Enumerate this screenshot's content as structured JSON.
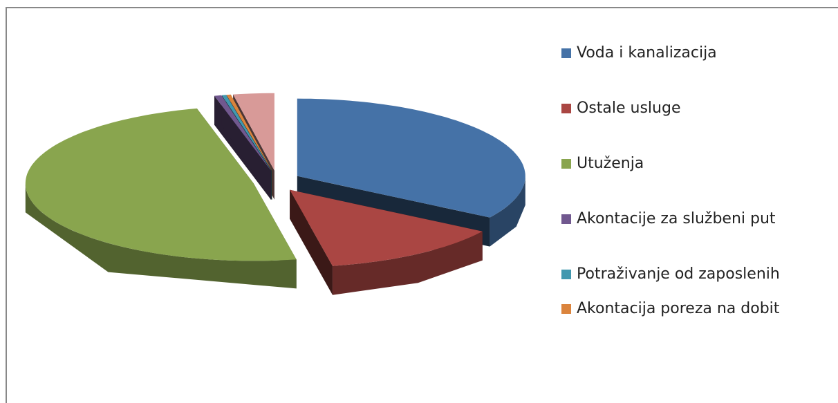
{
  "chart_data": {
    "type": "pie3d",
    "categories": [
      "Voda i kanalizacija",
      "Ostale usluge",
      "Utuženja",
      "Akontacije za službeni put",
      "Potraživanje od zaposlenih",
      "Akontacija poreza na dobit",
      null
    ],
    "values": [
      34,
      13,
      49,
      0.5,
      0.3,
      0.3,
      2.9
    ],
    "colors": [
      "#4572a7",
      "#aa4643",
      "#89a54e",
      "#71588f",
      "#4198af",
      "#db843d",
      "#d89a98"
    ],
    "legend": "right"
  }
}
